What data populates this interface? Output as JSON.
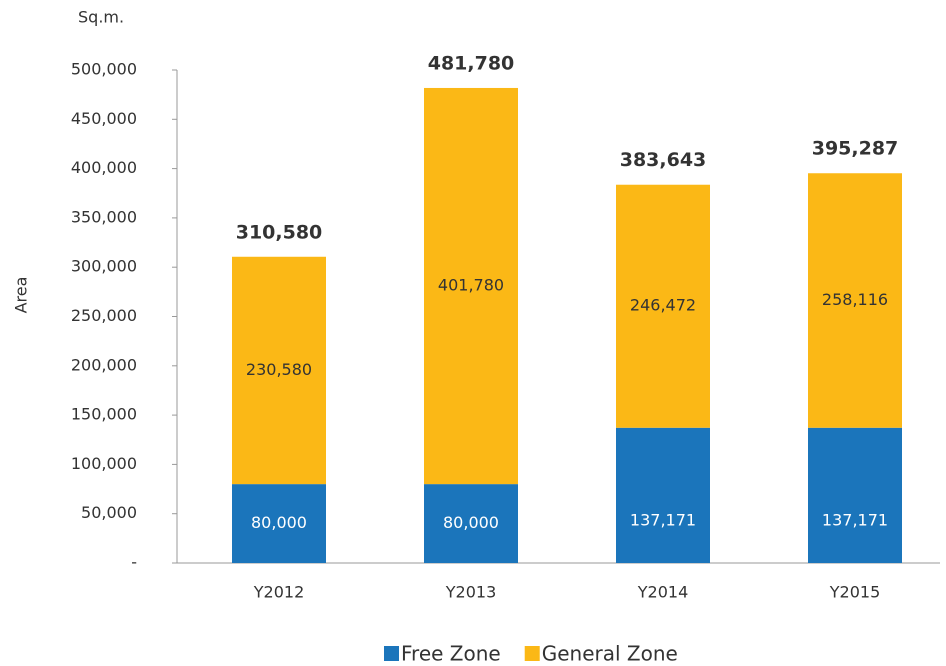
{
  "chart_data": {
    "type": "stacked_bar",
    "unit_label": "Sq.m.",
    "y_axis_label": "Area",
    "categories": [
      "Y2012",
      "Y2013",
      "Y2014",
      "Y2015"
    ],
    "series": [
      {
        "name": "Free Zone",
        "color": "#1b75bb",
        "values": [
          80000,
          80000,
          137171,
          137171
        ],
        "value_labels": [
          "80,000",
          "80,000",
          "137,171",
          "137,171"
        ]
      },
      {
        "name": "General Zone",
        "color": "#fbb816",
        "values": [
          230580,
          401780,
          246472,
          258116
        ],
        "value_labels": [
          "230,580",
          "401,780",
          "246,472",
          "258,116"
        ]
      }
    ],
    "totals": [
      310580,
      481780,
      383643,
      395287
    ],
    "total_labels": [
      "310,580",
      "481,780",
      "383,643",
      "395,287"
    ],
    "ylim": [
      0,
      500000
    ],
    "yticks": [
      {
        "value": 0,
        "label": "-"
      },
      {
        "value": 50000,
        "label": "50,000"
      },
      {
        "value": 100000,
        "label": "100,000"
      },
      {
        "value": 150000,
        "label": "150,000"
      },
      {
        "value": 200000,
        "label": "200,000"
      },
      {
        "value": 250000,
        "label": "250,000"
      },
      {
        "value": 300000,
        "label": "300,000"
      },
      {
        "value": 350000,
        "label": "350,000"
      },
      {
        "value": 400000,
        "label": "400,000"
      },
      {
        "value": 450000,
        "label": "450,000"
      },
      {
        "value": 500000,
        "label": "500,000"
      }
    ],
    "legend": "bottom"
  }
}
